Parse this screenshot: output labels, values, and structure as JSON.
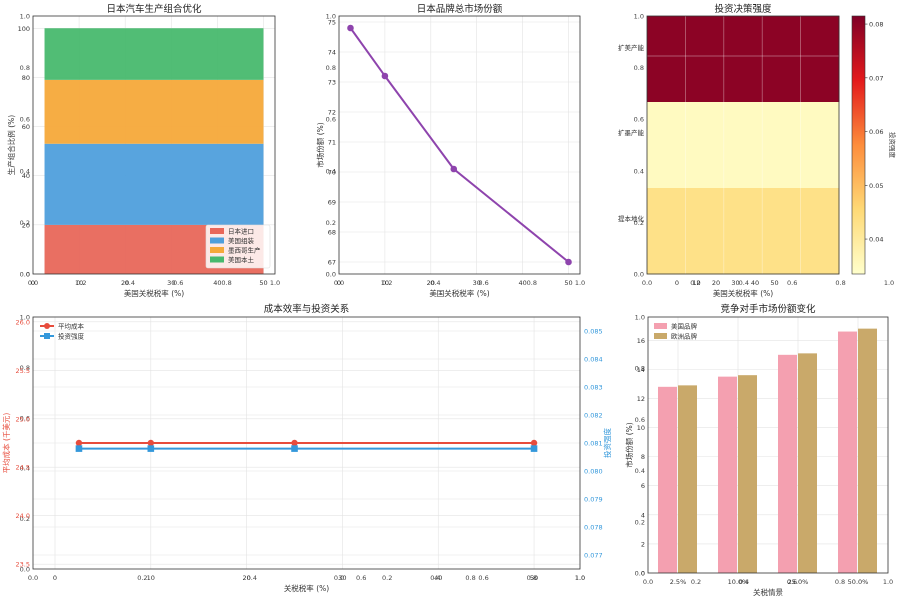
{
  "colors": {
    "japan_import": "#e8675a",
    "us_assembly": "#4f9fdc",
    "mexico": "#f5a93a",
    "us_local": "#48b96e",
    "line_purple": "#8e44ad",
    "cost_red": "#e74c3c",
    "invest_blue": "#3498db",
    "us_brand": "#f4a0b0",
    "eu_brand": "#c9a96a"
  },
  "chart_data": [
    {
      "type": "area",
      "title": "日本汽车生产组合优化",
      "xlabel": "美国关税税率 (%)",
      "ylabel": "生产组合比例 (%)",
      "x": [
        2.5,
        50
      ],
      "xlim": [
        0,
        52.5
      ],
      "ylim": [
        0,
        105
      ],
      "xticks": [
        0,
        10,
        20,
        30,
        40,
        50
      ],
      "yticks": [
        0,
        20,
        40,
        60,
        80,
        100
      ],
      "series": [
        {
          "name": "日本进口",
          "values": [
            20,
            20
          ]
        },
        {
          "name": "美国组装",
          "values": [
            33,
            33
          ]
        },
        {
          "name": "墨西哥生产",
          "values": [
            26,
            26
          ]
        },
        {
          "name": "美国本土",
          "values": [
            21,
            21
          ]
        }
      ],
      "legend": "lower-right"
    },
    {
      "type": "line",
      "title": "日本品牌总市场份额",
      "xlabel": "美国关税税率 (%)",
      "ylabel": "市场份额 (%)",
      "x": [
        2.5,
        10,
        25,
        50
      ],
      "values": [
        74.8,
        73.2,
        70.1,
        67.0
      ],
      "xlim": [
        0,
        52.5
      ],
      "ylim": [
        66.6,
        75.2
      ],
      "xticks": [
        0,
        10,
        20,
        30,
        40,
        50
      ],
      "yticks": [
        67,
        68,
        69,
        70,
        71,
        72,
        73,
        74,
        75
      ]
    },
    {
      "type": "heatmap",
      "title": "投资决策强度",
      "xlabel": "美国关税税率 (%)",
      "rows": [
        "扩美产能",
        "扩墨产能",
        "提本地化"
      ],
      "xticks": [
        0,
        10,
        20,
        30,
        40,
        50
      ],
      "values": [
        [
          0.08,
          0.08,
          0.08,
          0.08,
          0.08
        ],
        [
          0.035,
          0.035,
          0.035,
          0.035,
          0.035
        ],
        [
          0.043,
          0.043,
          0.043,
          0.043,
          0.043
        ]
      ],
      "colorbar": {
        "label": "投资强度",
        "range": [
          0.0335,
          0.0815
        ],
        "ticks": [
          0.04,
          0.05,
          0.06,
          0.07,
          0.08
        ]
      }
    },
    {
      "type": "line",
      "title": "成本效率与投资关系",
      "xlabel": "关税税率 (%)",
      "ylabel": "平均成本 (千美元)",
      "ylabel_right": "投资强度",
      "x": [
        2.5,
        10,
        25,
        50
      ],
      "xlim": [
        0,
        52.5
      ],
      "xticks": [
        0,
        10,
        20,
        30,
        40,
        50
      ],
      "series": [
        {
          "name": "平均成本",
          "values": [
            24.75,
            24.75,
            24.75,
            24.75
          ]
        },
        {
          "name": "投资强度",
          "values": [
            0.0808,
            0.0808,
            0.0808,
            0.0808
          ]
        }
      ],
      "ylim_left": [
        23.45,
        26.05
      ],
      "yticks_left": [
        "23.5",
        "24.0",
        "24.5",
        "25.0",
        "25.5",
        "26.0"
      ],
      "ylim_right": [
        0.0765,
        0.0855
      ],
      "yticks_right": [
        "0.077",
        "0.078",
        "0.079",
        "0.080",
        "0.081",
        "0.082",
        "0.083",
        "0.084",
        "0.085"
      ],
      "legend": "top-left"
    },
    {
      "type": "bar",
      "title": "竞争对手市场份额变化",
      "xlabel": "关税情景",
      "ylabel": "市场份额 (%)",
      "categories": [
        "2.5%",
        "10.0%",
        "25.0%",
        "50.0%"
      ],
      "series": [
        {
          "name": "美国品牌",
          "values": [
            12.8,
            13.5,
            15.0,
            16.6
          ]
        },
        {
          "name": "欧洲品牌",
          "values": [
            12.9,
            13.6,
            15.1,
            16.8
          ]
        }
      ],
      "ylim": [
        0,
        17.6
      ],
      "yticks": [
        0,
        2,
        4,
        6,
        8,
        10,
        12,
        14,
        16
      ],
      "legend": "top-left"
    }
  ],
  "ghost_ticks": [
    "0.0",
    "0.2",
    "0.4",
    "0.6",
    "0.8",
    "1.0"
  ]
}
